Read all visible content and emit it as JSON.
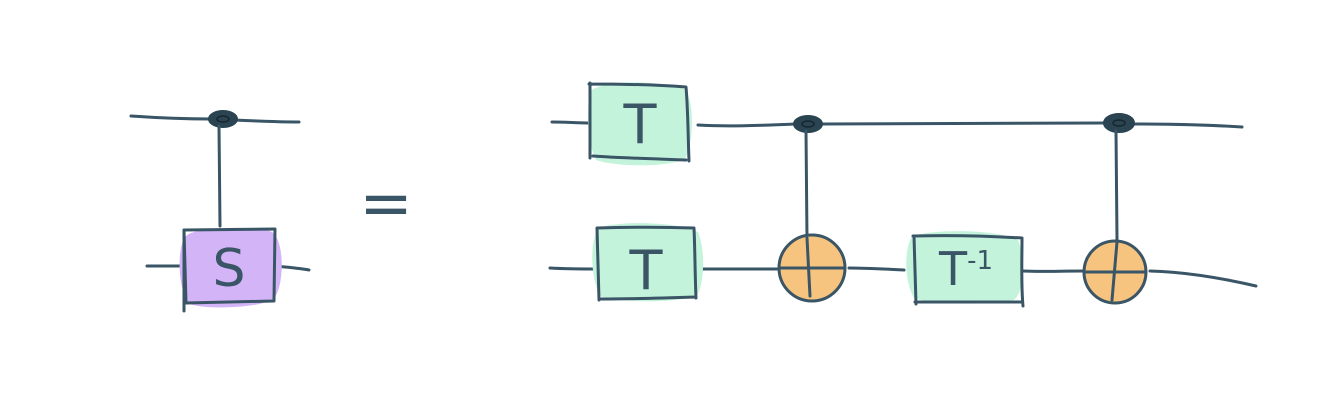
{
  "diagram": {
    "lhs_gate_label": "S",
    "equals_symbol": "=",
    "rhs_gate_top_label": "T",
    "rhs_gate_bottom_label": "T",
    "rhs_gate_inverse_base": "T",
    "rhs_gate_inverse_exponent": "-1"
  },
  "colors": {
    "wire": "#3a5566",
    "control_dot": "#2b4452",
    "s_gate_fill": "#d3b4f7",
    "t_gate_fill": "#c4f3dc",
    "xor_fill": "#f7c47f"
  }
}
